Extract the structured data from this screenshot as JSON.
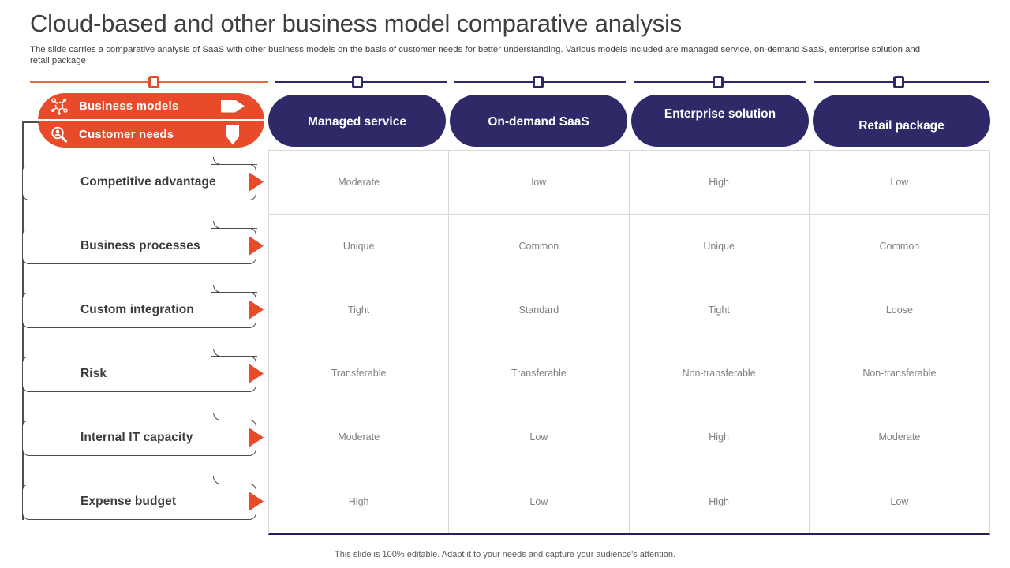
{
  "slide": {
    "title": "Cloud-based and other business model comparative analysis",
    "subtitle_line1": "The slide carries a comparative analysis of SaaS with other business models on the basis of customer needs for better understanding. Various models included are managed service, on-demand SaaS, enterprise solution and",
    "subtitle_line2": "retail package",
    "footer": "This slide is 100% editable. Adapt it to your needs and capture your audience's attention."
  },
  "legend": {
    "items": [
      {
        "label": "Business models",
        "left_icon": "network-nodes-icon",
        "right_icon": "arrow-right-icon"
      },
      {
        "label": "Customer needs",
        "left_icon": "magnifier-person-icon",
        "right_icon": "arrow-down-icon"
      }
    ]
  },
  "table": {
    "columns": [
      "Managed service",
      "On-demand SaaS",
      "Enterprise solution",
      "Retail package"
    ],
    "rows": [
      {
        "label": "Competitive advantage",
        "values": [
          "Moderate",
          "low",
          "High",
          "Low"
        ]
      },
      {
        "label": "Business processes",
        "values": [
          "Unique",
          "Common",
          "Unique",
          "Common"
        ]
      },
      {
        "label": "Custom integration",
        "values": [
          "Tight",
          "Standard",
          "Tight",
          "Loose"
        ]
      },
      {
        "label": "Risk",
        "values": [
          "Transferable",
          "Transferable",
          "Non-transferable",
          "Non-transferable"
        ]
      },
      {
        "label": "Internal IT capacity",
        "values": [
          "Moderate",
          "Low",
          "High",
          "Moderate"
        ]
      },
      {
        "label": "Expense budget",
        "values": [
          "High",
          "Low",
          "High",
          "Low"
        ]
      }
    ]
  },
  "colors": {
    "accent_orange": "#e84b2a",
    "accent_navy": "#2e2a68",
    "divider_orange": "#e8664a",
    "title_text": "#3f3f3f",
    "cell_text": "#808080",
    "grid_line": "#d8d8d8",
    "table_bottom_line": "#23205a"
  }
}
